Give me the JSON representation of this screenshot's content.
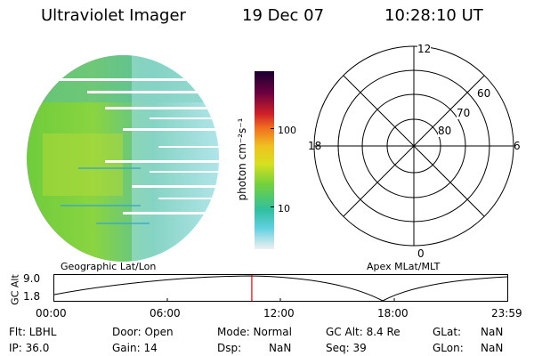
{
  "header": {
    "title": "Ultraviolet Imager",
    "date": "19 Dec 07",
    "time": "10:28:10 UT"
  },
  "colorbar": {
    "unit_label": "photon cm⁻²s⁻¹",
    "ticks": [
      "100",
      "10"
    ]
  },
  "polar_grid": {
    "mlt_labels": [
      "12",
      "18",
      "6",
      "0"
    ],
    "mlat_labels": [
      "60",
      "70",
      "80"
    ]
  },
  "map_labels": {
    "left": "Geographic Lat/Lon",
    "right": "Apex MLat/MLT"
  },
  "gc_alt_plot": {
    "ylabel": "GC Alt",
    "y_ticks": [
      "9.0",
      "1.8"
    ],
    "x_ticks": [
      "00:00",
      "06:00",
      "12:00",
      "18:00",
      "23:59"
    ],
    "current_time_fraction": 0.436
  },
  "status": {
    "flt": "Flt: LBHL",
    "ip": "IP: 36.0",
    "door": "Door: Open",
    "gain": "Gain: 14",
    "mode": "Mode: Normal",
    "dsp": "Dsp:",
    "dsp_val": "NaN",
    "gcalt": "GC Alt: 8.4 Re",
    "seq": "Seq: 39",
    "glat": "GLat:",
    "glat_val": "NaN",
    "glon": "GLon:",
    "glon_val": "NaN"
  },
  "colors": {
    "marker": "#e00000",
    "image_green": "#7ccf3a",
    "image_teal": "#4cb8a8"
  }
}
